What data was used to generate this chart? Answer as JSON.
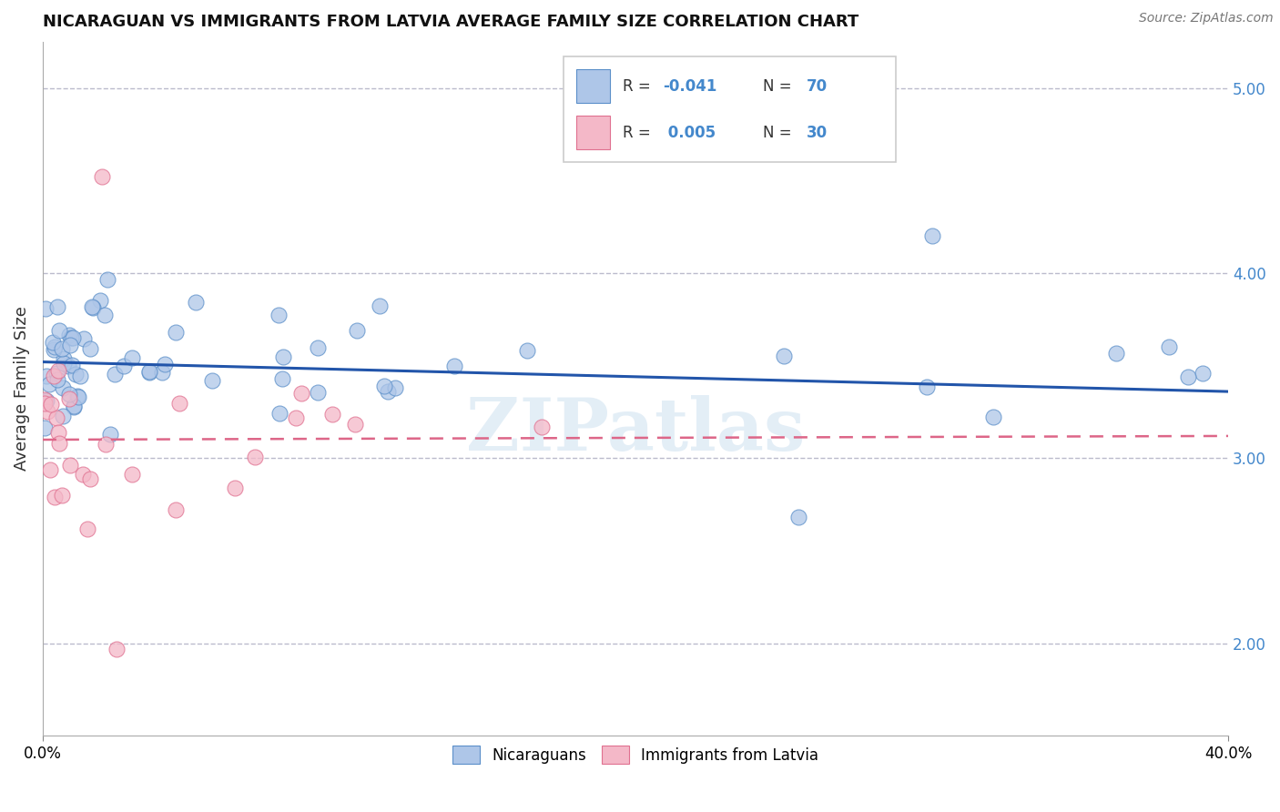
{
  "title": "NICARAGUAN VS IMMIGRANTS FROM LATVIA AVERAGE FAMILY SIZE CORRELATION CHART",
  "source": "Source: ZipAtlas.com",
  "ylabel": "Average Family Size",
  "xmin": 0.0,
  "xmax": 40.0,
  "ymin": 1.5,
  "ymax": 5.25,
  "yticks_right": [
    2.0,
    3.0,
    4.0,
    5.0
  ],
  "legend_label1": "Nicaraguans",
  "legend_label2": "Immigrants from Latvia",
  "R1": "-0.041",
  "N1": "70",
  "R2": "0.005",
  "N2": "30",
  "color_blue": "#aec6e8",
  "color_pink": "#f4b8c8",
  "edge_blue": "#5b8fc9",
  "edge_pink": "#e07090",
  "line_blue": "#2255aa",
  "line_pink": "#dd6688",
  "watermark": "ZIPatlas",
  "blue_intercept": 3.52,
  "blue_slope": -0.004,
  "pink_intercept": 3.1,
  "pink_slope": 0.0005
}
